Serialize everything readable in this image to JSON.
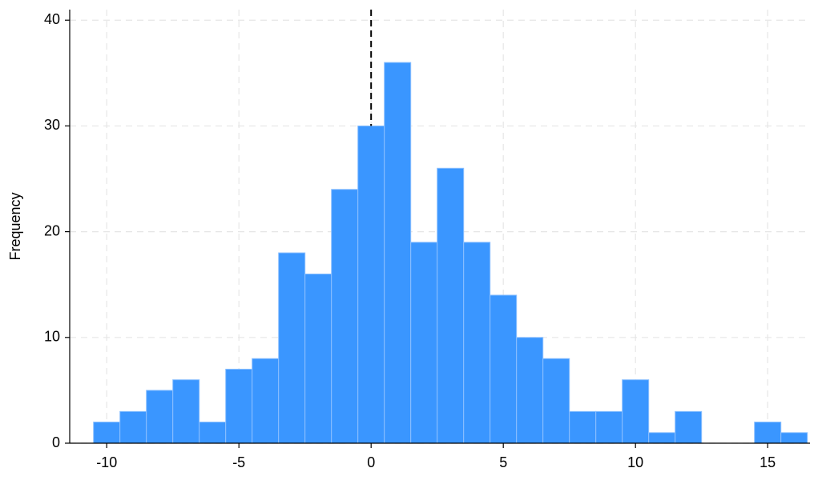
{
  "chart_data": {
    "type": "histogram",
    "y_label": "Frequency",
    "bins": [
      -10.5,
      -9.5,
      -8.5,
      -7.5,
      -6.5,
      -5.5,
      -4.5,
      -3.5,
      -2.5,
      -1.5,
      -0.5,
      0.5,
      1.5,
      2.5,
      3.5,
      4.5,
      5.5,
      6.5,
      7.5,
      8.5,
      9.5,
      10.5,
      11.5,
      12.5,
      13.5,
      14.5,
      15.5,
      16.5
    ],
    "counts": [
      2,
      3,
      5,
      6,
      2,
      7,
      8,
      18,
      16,
      24,
      30,
      36,
      19,
      26,
      19,
      14,
      10,
      8,
      3,
      3,
      6,
      1,
      3,
      0,
      0,
      2,
      1
    ],
    "color": "#3a96ff",
    "reference_line": 0,
    "xlim": [
      -11.4,
      16.6
    ],
    "xticks": [
      -10,
      -5,
      0,
      5,
      10,
      15
    ],
    "ylim": [
      0,
      41
    ],
    "yticks": [
      0,
      10,
      20,
      30,
      40
    ],
    "grid": true
  }
}
